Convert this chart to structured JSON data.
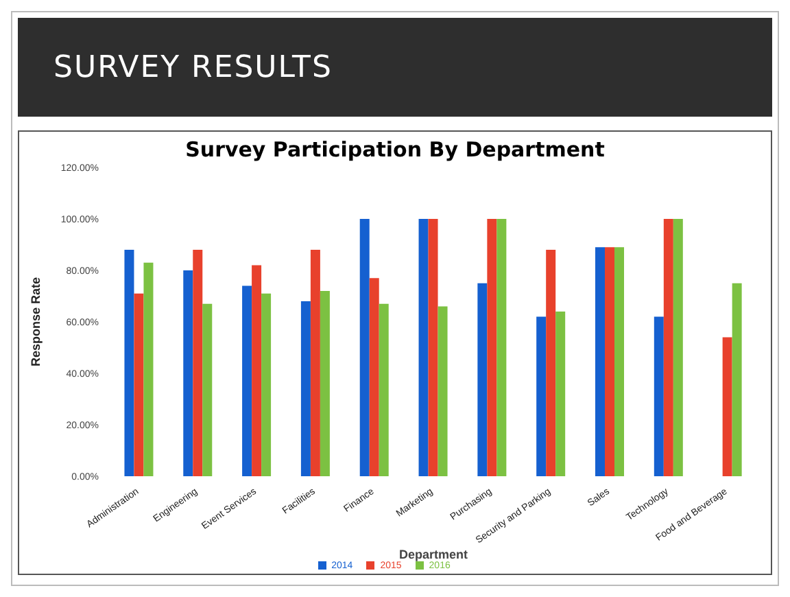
{
  "chart_data": {
    "type": "bar",
    "title": "SURVEY RESULTS",
    "subtitle": "Survey Participation By Department",
    "xlabel": "Department",
    "ylabel": "Response Rate",
    "categories": [
      "Administration",
      "Engineering",
      "Event Services",
      "Facilities",
      "Finance",
      "Marketing",
      "Purchasing",
      "Security and Parking",
      "Sales",
      "Technology",
      "Food and Beverage"
    ],
    "series": [
      {
        "name": "2014",
        "color": "#1560d0",
        "values": [
          88,
          80,
          74,
          68,
          100,
          100,
          75,
          62,
          89,
          62,
          null
        ]
      },
      {
        "name": "2015",
        "color": "#e8412c",
        "values": [
          71,
          88,
          82,
          88,
          77,
          100,
          100,
          88,
          89,
          100,
          54
        ]
      },
      {
        "name": "2016",
        "color": "#7cc142",
        "values": [
          83,
          67,
          71,
          72,
          67,
          66,
          100,
          64,
          89,
          100,
          75
        ]
      }
    ],
    "ylim": [
      0,
      120
    ],
    "yticks": [
      {
        "value": 0,
        "label": "0.00%"
      },
      {
        "value": 20,
        "label": "20.00%"
      },
      {
        "value": 40,
        "label": "40.00%"
      },
      {
        "value": 60,
        "label": "60.00%"
      },
      {
        "value": 80,
        "label": "80.00%"
      },
      {
        "value": 100,
        "label": "100.00%"
      },
      {
        "value": 120,
        "label": "120.00%"
      }
    ],
    "grid": false,
    "legend": "bottom"
  }
}
